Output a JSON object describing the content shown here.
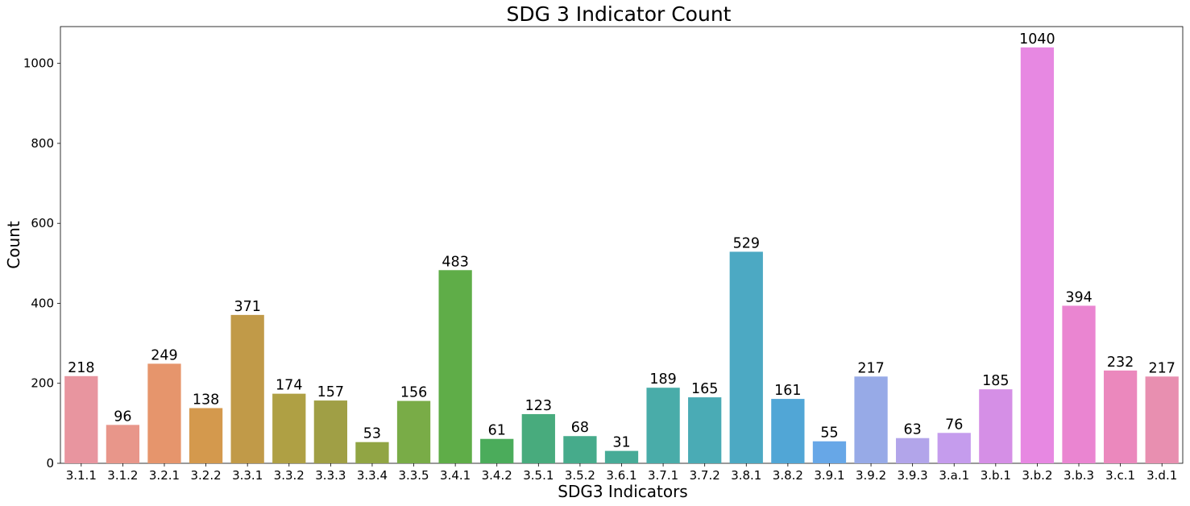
{
  "chart_data": {
    "type": "bar",
    "title": "SDG 3 Indicator Count",
    "xlabel": "SDG3 Indicators",
    "ylabel": "Count",
    "ylim": [
      0,
      1092
    ],
    "yticks": [
      0,
      200,
      400,
      600,
      800,
      1000
    ],
    "grid": false,
    "categories": [
      "3.1.1",
      "3.1.2",
      "3.2.1",
      "3.2.2",
      "3.3.1",
      "3.3.2",
      "3.3.3",
      "3.3.4",
      "3.3.5",
      "3.4.1",
      "3.4.2",
      "3.5.1",
      "3.5.2",
      "3.6.1",
      "3.7.1",
      "3.7.2",
      "3.8.1",
      "3.8.2",
      "3.9.1",
      "3.9.2",
      "3.9.3",
      "3.a.1",
      "3.b.1",
      "3.b.2",
      "3.b.3",
      "3.c.1",
      "3.d.1"
    ],
    "values": [
      218,
      96,
      249,
      138,
      371,
      174,
      157,
      53,
      156,
      483,
      61,
      123,
      68,
      31,
      189,
      165,
      529,
      161,
      55,
      217,
      63,
      76,
      185,
      1040,
      394,
      232,
      217
    ],
    "colors": [
      "#e8959f",
      "#e8968a",
      "#e6956c",
      "#d4994d",
      "#c19a48",
      "#afa044",
      "#a09f45",
      "#91a544",
      "#79ac47",
      "#5fad48",
      "#4bac5b",
      "#48ab7d",
      "#46ab8b",
      "#47ab97",
      "#49aca9",
      "#4aabb5",
      "#4ca9c3",
      "#51a6d6",
      "#67a7e7",
      "#97aae7",
      "#b2a5ea",
      "#c59ced",
      "#d58fe6",
      "#e788e2",
      "#ea85d1",
      "#eb88bd",
      "#e88fb0"
    ]
  }
}
